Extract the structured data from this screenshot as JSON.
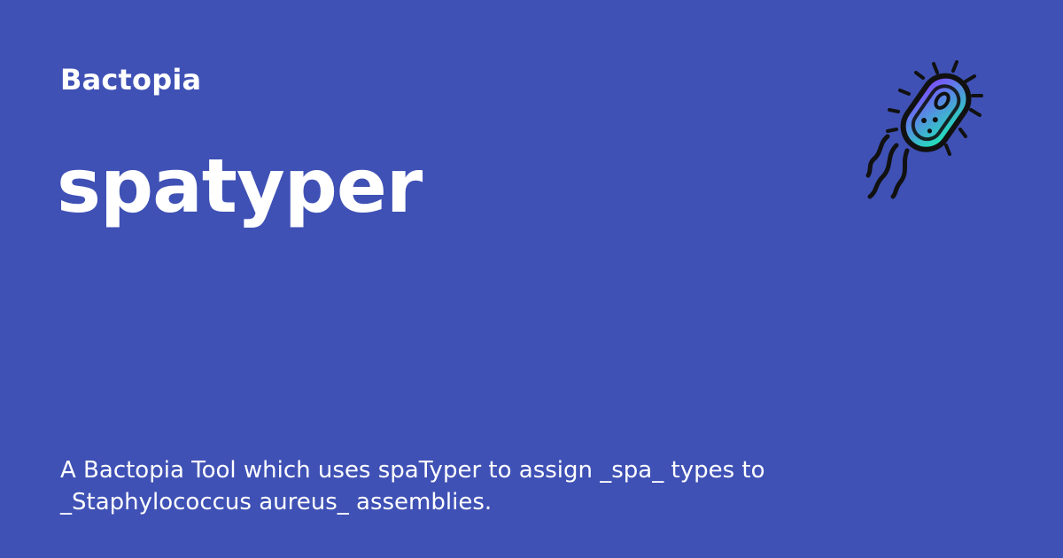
{
  "colors": {
    "background": "#3f51b5",
    "text": "#ffffff",
    "logo_gradient_top": "#7c4dff",
    "logo_gradient_bottom": "#1de9b6",
    "logo_outline": "#111111"
  },
  "site": {
    "name": "Bactopia"
  },
  "page": {
    "title": "spatyper",
    "description": "A Bactopia Tool which uses spaTyper to assign _spa_ types to _Staphylococcus aureus_ assemblies."
  },
  "logo": {
    "icon": "bacterium-icon"
  }
}
